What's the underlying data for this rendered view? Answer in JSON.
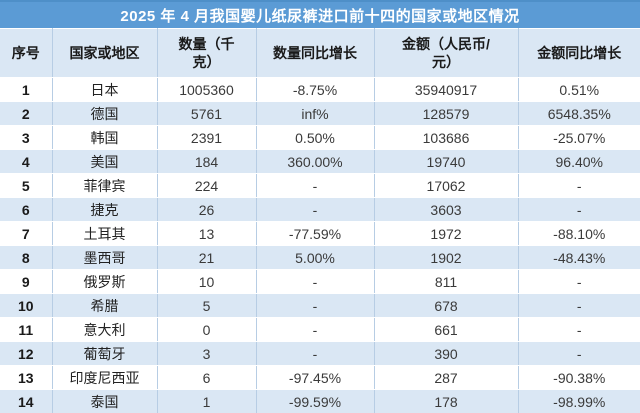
{
  "colors": {
    "title_bg": "#5B9BD5",
    "title_bg_top_edge": "#4E8FC8",
    "title_text": "#FFFFFF",
    "header_bg": "#DAE7F4",
    "row_bg": "#FFFFFF",
    "row_alt_bg": "#DAE7F4",
    "grid_line": "#B7CDE4",
    "body_text": "#3A3A3A"
  },
  "chart_data": {
    "type": "table",
    "title": "2025 年 4 月我国婴儿纸尿裤进口前十四的国家或地区情况",
    "columns": [
      "序号",
      "国家或地区",
      "数量（千\n克）",
      "数量同比增长",
      "金额（人民币/\n元）",
      "金额同比增长"
    ],
    "rows": [
      [
        "1",
        "日本",
        "1005360",
        "-8.75%",
        "35940917",
        "0.51%"
      ],
      [
        "2",
        "德国",
        "5761",
        "inf%",
        "128579",
        "6548.35%"
      ],
      [
        "3",
        "韩国",
        "2391",
        "0.50%",
        "103686",
        "-25.07%"
      ],
      [
        "4",
        "美国",
        "184",
        "360.00%",
        "19740",
        "96.40%"
      ],
      [
        "5",
        "菲律宾",
        "224",
        "-",
        "17062",
        "-"
      ],
      [
        "6",
        "捷克",
        "26",
        "-",
        "3603",
        "-"
      ],
      [
        "7",
        "土耳其",
        "13",
        "-77.59%",
        "1972",
        "-88.10%"
      ],
      [
        "8",
        "墨西哥",
        "21",
        "5.00%",
        "1902",
        "-48.43%"
      ],
      [
        "9",
        "俄罗斯",
        "10",
        "-",
        "811",
        "-"
      ],
      [
        "10",
        "希腊",
        "5",
        "-",
        "678",
        "-"
      ],
      [
        "11",
        "意大利",
        "0",
        "-",
        "661",
        "-"
      ],
      [
        "12",
        "葡萄牙",
        "3",
        "-",
        "390",
        "-"
      ],
      [
        "13",
        "印度尼西亚",
        "6",
        "-97.45%",
        "287",
        "-90.38%"
      ],
      [
        "14",
        "泰国",
        "1",
        "-99.59%",
        "178",
        "-98.99%"
      ]
    ]
  }
}
